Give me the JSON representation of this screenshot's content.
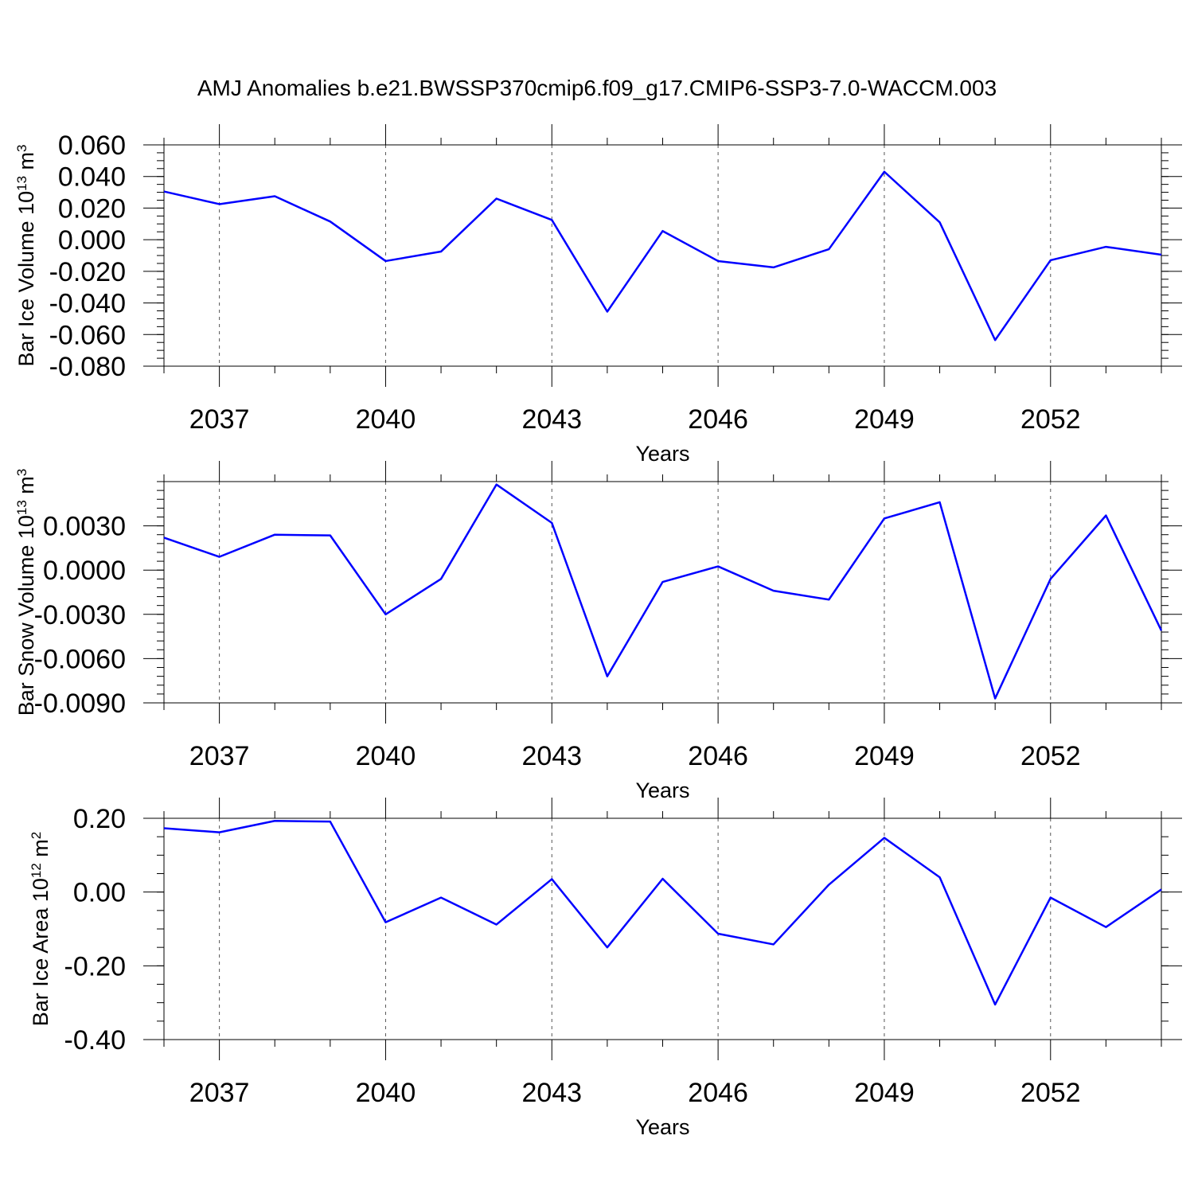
{
  "title": "AMJ Anomalies b.e21.BWSSP370cmip6.f09_g17.CMIP6-SSP3-7.0-WACCM.003",
  "line_color": "#0000ff",
  "chart_data": [
    {
      "type": "line",
      "ylabel": {
        "base": "Bar Ice Volume 10",
        "exp": "13",
        "unit": " m",
        "unit_exp": "3"
      },
      "xlabel": "Years",
      "xlim": [
        2036,
        2054
      ],
      "ylim": [
        -0.08,
        0.06
      ],
      "yticks": [
        -0.08,
        -0.06,
        -0.04,
        -0.02,
        0.0,
        0.02,
        0.04,
        0.06
      ],
      "ytick_labels": [
        "-0.080",
        "-0.060",
        "-0.040",
        "-0.020",
        "0.000",
        "0.020",
        "0.040",
        "0.060"
      ],
      "y_minor_step": 0.005,
      "xticks": [
        2037,
        2040,
        2043,
        2046,
        2049,
        2052
      ],
      "xtick_labels": [
        "2037",
        "2040",
        "2043",
        "2046",
        "2049",
        "2052"
      ],
      "grid_x": true,
      "x": [
        2036,
        2037,
        2038,
        2039,
        2040,
        2041,
        2042,
        2043,
        2044,
        2045,
        2046,
        2047,
        2048,
        2049,
        2050,
        2051,
        2052,
        2053,
        2054
      ],
      "values": [
        0.0305,
        0.0225,
        0.0275,
        0.0115,
        -0.0135,
        -0.0075,
        0.026,
        0.0125,
        -0.0455,
        0.0055,
        -0.0135,
        -0.0175,
        -0.006,
        0.043,
        0.011,
        -0.0635,
        -0.013,
        -0.0045,
        -0.0095
      ]
    },
    {
      "type": "line",
      "ylabel": {
        "base": "Bar Snow Volume 10",
        "exp": "13",
        "unit": " m",
        "unit_exp": "3"
      },
      "xlabel": "Years",
      "xlim": [
        2036,
        2054
      ],
      "ylim": [
        -0.009,
        0.006
      ],
      "yticks": [
        -0.009,
        -0.006,
        -0.003,
        0.0,
        0.003
      ],
      "ytick_labels": [
        "-0.0090",
        "-0.0060",
        "-0.0030",
        "0.0000",
        "0.0030"
      ],
      "y_minor_step": 0.0006,
      "xticks": [
        2037,
        2040,
        2043,
        2046,
        2049,
        2052
      ],
      "xtick_labels": [
        "2037",
        "2040",
        "2043",
        "2046",
        "2049",
        "2052"
      ],
      "grid_x": true,
      "x": [
        2036,
        2037,
        2038,
        2039,
        2040,
        2041,
        2042,
        2043,
        2044,
        2045,
        2046,
        2047,
        2048,
        2049,
        2050,
        2051,
        2052,
        2053,
        2054
      ],
      "values": [
        0.0022,
        0.0009,
        0.0024,
        0.00235,
        -0.003,
        -0.0006,
        0.0058,
        0.0032,
        -0.0072,
        -0.0008,
        0.00025,
        -0.0014,
        -0.002,
        0.0035,
        0.0046,
        -0.0087,
        -0.0006,
        0.0037,
        -0.0041
      ]
    },
    {
      "type": "line",
      "ylabel": {
        "base": "Bar Ice Area 10",
        "exp": "12",
        "unit": " m",
        "unit_exp": "2"
      },
      "xlabel": "Years",
      "xlim": [
        2036,
        2054
      ],
      "ylim": [
        -0.4,
        0.2
      ],
      "yticks": [
        -0.4,
        -0.2,
        0.0,
        0.2
      ],
      "ytick_labels": [
        "-0.40",
        "-0.20",
        "0.00",
        "0.20"
      ],
      "y_minor_step": 0.05,
      "xticks": [
        2037,
        2040,
        2043,
        2046,
        2049,
        2052
      ],
      "xtick_labels": [
        "2037",
        "2040",
        "2043",
        "2046",
        "2049",
        "2052"
      ],
      "grid_x": true,
      "x": [
        2036,
        2037,
        2038,
        2039,
        2040,
        2041,
        2042,
        2043,
        2044,
        2045,
        2046,
        2047,
        2048,
        2049,
        2050,
        2051,
        2052,
        2053,
        2054
      ],
      "values": [
        0.173,
        0.162,
        0.193,
        0.191,
        -0.082,
        -0.015,
        -0.088,
        0.035,
        -0.15,
        0.036,
        -0.113,
        -0.142,
        0.02,
        0.147,
        0.04,
        -0.305,
        -0.015,
        -0.095,
        0.007
      ]
    }
  ]
}
